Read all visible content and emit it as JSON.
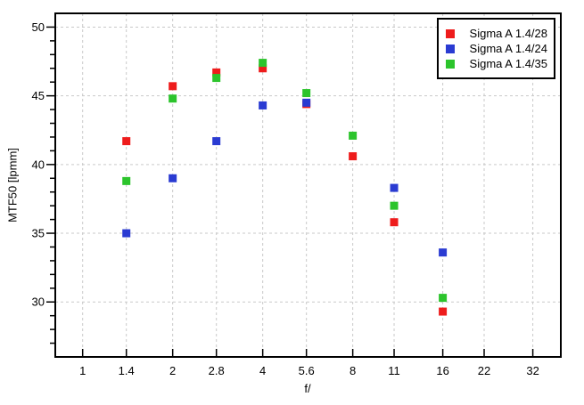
{
  "chart_data": {
    "type": "scatter",
    "xlabel": "f/",
    "ylabel": "MTF50 [lpmm]",
    "x_scale": "log2",
    "xlim": [
      0.81,
      39.7
    ],
    "ylim": [
      26,
      51
    ],
    "x_ticks": [
      1,
      1.4,
      2,
      2.8,
      4,
      5.6,
      8,
      11,
      16,
      22,
      32
    ],
    "x_tick_labels": [
      "1",
      "1.4",
      "2",
      "2.8",
      "4",
      "5.6",
      "8",
      "11",
      "16",
      "22",
      "32"
    ],
    "y_major_ticks": [
      30,
      35,
      40,
      45,
      50
    ],
    "y_tick_labels": [
      "30",
      "35",
      "40",
      "45",
      "50"
    ],
    "y_minor_step": 1,
    "grid": "dashed-both-axes",
    "legend_position": "top-right-inside",
    "marker": "square",
    "marker_size_px": 9,
    "grid_color": "#c9c9c9",
    "frame_color": "#000000",
    "series": [
      {
        "name": "Sigma A 1.4/28",
        "color": "#ee1c1c",
        "points": [
          [
            1.4,
            41.7
          ],
          [
            2,
            45.7
          ],
          [
            2.8,
            46.7
          ],
          [
            4,
            47.0
          ],
          [
            5.6,
            44.4
          ],
          [
            8,
            40.6
          ],
          [
            11,
            35.8
          ],
          [
            16,
            29.3
          ]
        ]
      },
      {
        "name": "Sigma A 1.4/24",
        "color": "#2a3bd2",
        "points": [
          [
            1.4,
            35.0
          ],
          [
            2,
            39.0
          ],
          [
            2.8,
            41.7
          ],
          [
            4,
            44.3
          ],
          [
            5.6,
            44.5
          ],
          [
            11,
            38.3
          ],
          [
            16,
            33.6
          ]
        ]
      },
      {
        "name": "Sigma A 1.4/35",
        "color": "#2cc42c",
        "points": [
          [
            1.4,
            38.8
          ],
          [
            2,
            44.8
          ],
          [
            2.8,
            46.3
          ],
          [
            4,
            47.4
          ],
          [
            5.6,
            45.2
          ],
          [
            8,
            42.1
          ],
          [
            11,
            37.0
          ],
          [
            16,
            30.3
          ]
        ]
      }
    ]
  }
}
